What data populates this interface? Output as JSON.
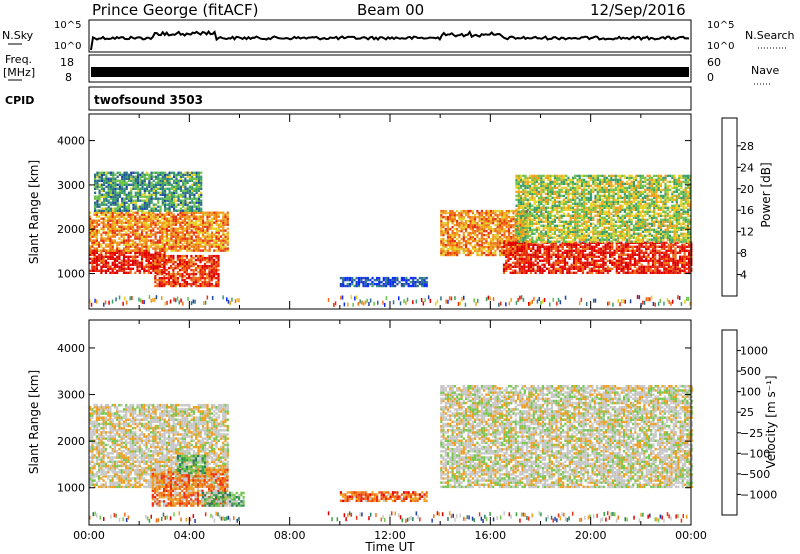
{
  "header": {
    "station": "Prince George (fitACF)",
    "beam": "Beam 00",
    "date": "12/Sep/2016"
  },
  "top_panels": {
    "nsky_label": "N.Sky",
    "nsky_ticks": [
      "10^5",
      "10^0"
    ],
    "nsearch_label": "N.Search",
    "nsearch_ticks": [
      "10^5",
      "10^0"
    ],
    "freq_label": "Freq.",
    "freq_unit": "[MHz]",
    "freq_ticks": [
      "18",
      "8"
    ],
    "nave_label": "Nave",
    "nave_ticks": [
      "60",
      "0"
    ],
    "cpid_label": "CPID",
    "cpid_value": "twofsound 3503"
  },
  "chart_data": [
    {
      "type": "heatmap",
      "panel": "power",
      "ylabel": "Slant Range [km]",
      "yticks": [
        "1000",
        "2000",
        "3000",
        "4000"
      ],
      "ylim": [
        200,
        4600
      ],
      "xlim_hours": [
        0,
        24
      ],
      "colorbar_label": "Power [dB]",
      "colorbar_ticks": [
        "4",
        "8",
        "12",
        "16",
        "20",
        "24",
        "28"
      ],
      "colors": [
        "#0a2cff",
        "#1e44aa",
        "#2d6e8c",
        "#3c9c6e",
        "#6cc24a",
        "#e6d22a",
        "#f0a020",
        "#f07018",
        "#e83010",
        "#e00000"
      ],
      "echo_bands": [
        {
          "t0": 0.0,
          "t1": 3.0,
          "r0": 1000,
          "r1": 1500,
          "level": 0.92
        },
        {
          "t0": 0.0,
          "t1": 5.5,
          "r0": 1500,
          "r1": 2400,
          "level": 0.7
        },
        {
          "t0": 0.2,
          "t1": 4.5,
          "r0": 2400,
          "r1": 3300,
          "level": 0.35
        },
        {
          "t0": 2.6,
          "t1": 5.2,
          "r0": 700,
          "r1": 1400,
          "level": 0.85
        },
        {
          "t0": 10.0,
          "t1": 13.5,
          "r0": 700,
          "r1": 900,
          "level": 0.15
        },
        {
          "t0": 14.0,
          "t1": 17.5,
          "r0": 1400,
          "r1": 2400,
          "level": 0.7
        },
        {
          "t0": 16.5,
          "t1": 24.0,
          "r0": 1000,
          "r1": 1700,
          "level": 0.9
        },
        {
          "t0": 17.0,
          "t1": 24.0,
          "r0": 1700,
          "r1": 3200,
          "level": 0.5
        }
      ]
    },
    {
      "type": "heatmap",
      "panel": "velocity",
      "ylabel": "Slant Range [km]",
      "yticks": [
        "1000",
        "2000",
        "3000",
        "4000"
      ],
      "ylim": [
        200,
        4600
      ],
      "xlim_hours": [
        0,
        24
      ],
      "xticks": [
        "00:00",
        "04:00",
        "08:00",
        "12:00",
        "16:00",
        "20:00",
        "00:00"
      ],
      "xlabel": "Time UT",
      "colorbar_label": "Velocity  [m s⁻¹]",
      "colorbar_ticks": [
        "1000",
        "500",
        "100",
        "25",
        "−25",
        "−100",
        "−500",
        "−1000"
      ],
      "colors": [
        "#e00000",
        "#f03010",
        "#f07018",
        "#f0a020",
        "#c8c8c8",
        "#c8c8c8",
        "#78c850",
        "#3ca048",
        "#2a7a60",
        "#1e3ca8"
      ],
      "echo_bands": [
        {
          "t0": 0.0,
          "t1": 5.5,
          "r0": 1000,
          "r1": 2800,
          "level": 0.48
        },
        {
          "t0": 2.5,
          "t1": 5.5,
          "r0": 600,
          "r1": 1400,
          "level": 0.3
        },
        {
          "t0": 3.5,
          "t1": 4.6,
          "r0": 1300,
          "r1": 1700,
          "level": 0.7
        },
        {
          "t0": 4.5,
          "t1": 6.2,
          "r0": 600,
          "r1": 900,
          "level": 0.68
        },
        {
          "t0": 10.0,
          "t1": 13.5,
          "r0": 700,
          "r1": 900,
          "level": 0.25
        },
        {
          "t0": 14.0,
          "t1": 24.0,
          "r0": 1000,
          "r1": 3200,
          "level": 0.5
        }
      ]
    }
  ]
}
